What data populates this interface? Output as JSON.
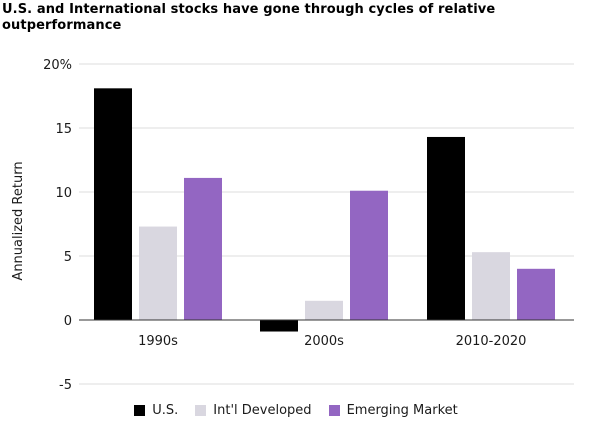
{
  "chart_data": {
    "type": "bar",
    "title": "U.S. and International stocks have gone through cycles of relative outperformance",
    "ylabel": "Annualized Return",
    "xlabel": "",
    "categories": [
      "1990s",
      "2000s",
      "2010-2020"
    ],
    "series": [
      {
        "name": "U.S.",
        "color": "#000000",
        "values": [
          18.1,
          -0.9,
          14.3
        ]
      },
      {
        "name": "Int'l Developed",
        "color": "#d9d7e0",
        "values": [
          7.3,
          1.5,
          5.3
        ]
      },
      {
        "name": "Emerging Market",
        "color": "#9366c2",
        "values": [
          11.1,
          10.1,
          4.0
        ]
      }
    ],
    "ylim": [
      -5,
      20
    ],
    "yticks": [
      -5,
      0,
      5,
      10,
      15,
      20
    ],
    "ytick_labels": [
      "-5",
      "0",
      "5",
      "10",
      "15",
      "20%"
    ],
    "grid": true,
    "legend_position": "bottom"
  }
}
